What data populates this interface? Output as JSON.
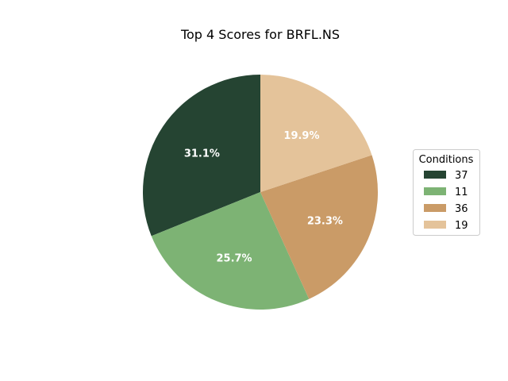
{
  "chart_data": {
    "type": "pie",
    "title": "Top 4 Scores for BRFL.NS",
    "legend_title": "Conditions",
    "legend_position": "right",
    "start_angle_deg": 90,
    "direction": "counterclockwise",
    "slices": [
      {
        "label": "37",
        "percent": 31.1,
        "display": "31.1%",
        "color": "#254432"
      },
      {
        "label": "11",
        "percent": 25.7,
        "display": "25.7%",
        "color": "#7db374"
      },
      {
        "label": "36",
        "percent": 23.3,
        "display": "23.3%",
        "color": "#ca9b67"
      },
      {
        "label": "19",
        "percent": 19.9,
        "display": "19.9%",
        "color": "#e4c39a"
      }
    ]
  }
}
